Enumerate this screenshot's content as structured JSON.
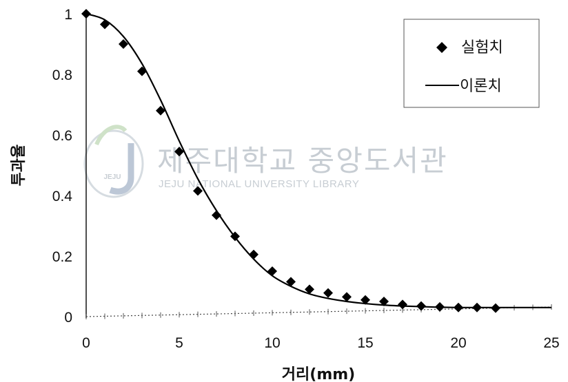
{
  "watermark": {
    "title": "제주대학교 중앙도서관",
    "subtitle": "JEJU NATIONAL UNIVERSITY LIBRARY",
    "logo_text": "JEJU",
    "color": "#c7cdd3"
  },
  "chart_data": {
    "type": "scatter",
    "xlabel": "거리(mm)",
    "ylabel": "투과율",
    "xlim": [
      0,
      25
    ],
    "ylim": [
      0,
      1
    ],
    "x_ticks": [
      "0",
      "5",
      "10",
      "15",
      "20",
      "25"
    ],
    "y_ticks": [
      "0",
      "0.2",
      "0.4",
      "0.6",
      "0.8",
      "1"
    ],
    "grid": false,
    "legend_position": "top-right",
    "series": [
      {
        "name": "실험치",
        "kind": "markers",
        "marker": "diamond",
        "color": "#000000",
        "x": [
          0,
          1,
          2,
          3,
          4,
          5,
          6,
          7,
          8,
          9,
          10,
          11,
          12,
          13,
          14,
          15,
          16,
          17,
          18,
          19,
          20,
          21,
          22
        ],
        "y": [
          1.0,
          0.965,
          0.9,
          0.81,
          0.68,
          0.545,
          0.415,
          0.335,
          0.265,
          0.205,
          0.15,
          0.115,
          0.09,
          0.078,
          0.065,
          0.055,
          0.05,
          0.04,
          0.035,
          0.032,
          0.03,
          0.03,
          0.028
        ]
      },
      {
        "name": "이론치",
        "kind": "line",
        "color": "#000000",
        "x": [
          0,
          1,
          2,
          3,
          4,
          5,
          6,
          7,
          8,
          9,
          10,
          11,
          12,
          13,
          14,
          15,
          16,
          17,
          18,
          19,
          20,
          21,
          22,
          23,
          24,
          25
        ],
        "y": [
          1.0,
          0.98,
          0.925,
          0.835,
          0.715,
          0.58,
          0.455,
          0.35,
          0.262,
          0.19,
          0.135,
          0.1,
          0.075,
          0.06,
          0.05,
          0.043,
          0.038,
          0.035,
          0.033,
          0.031,
          0.03,
          0.03,
          0.03,
          0.03,
          0.03,
          0.03
        ]
      }
    ]
  }
}
